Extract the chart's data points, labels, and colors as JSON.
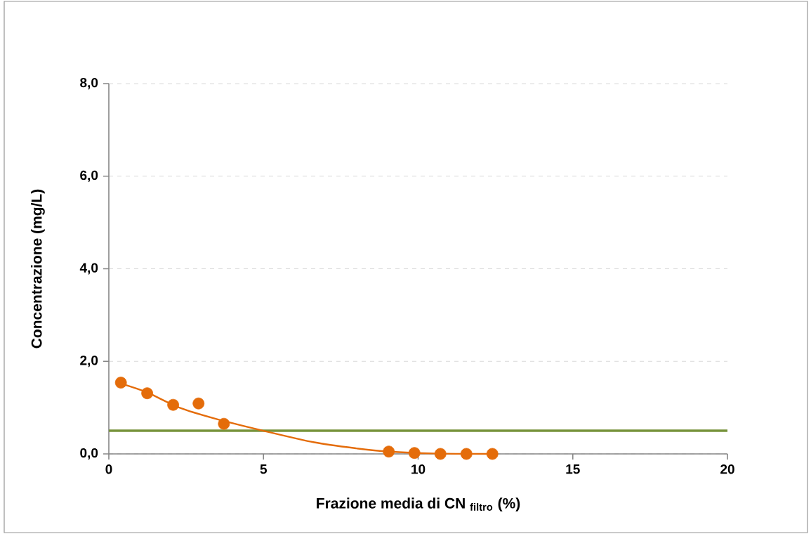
{
  "chart_data": {
    "type": "scatter",
    "xlabel": "Frazione media di CN $_{filtro}$ (%)",
    "ylabel": "Concentrazione  (mg/L)",
    "series": [
      {
        "color": "#e46c0a",
        "marker": "circle",
        "x": [
          0.39,
          1.24,
          2.08,
          2.9,
          3.72,
          9.05,
          9.88,
          10.72,
          11.56,
          12.4
        ],
        "values": [
          1.54,
          1.31,
          1.06,
          1.09,
          0.65,
          0.05,
          0.02,
          0.0,
          0.0,
          0.0
        ]
      },
      {
        "type": "line",
        "color": "#e46c0a",
        "marker": "none",
        "x": [
          0.39,
          1.23,
          2.28,
          3.5,
          5.0,
          6.64,
          8.0,
          9.05,
          10.5,
          12.4
        ],
        "values": [
          1.52,
          1.33,
          1.0,
          0.75,
          0.5,
          0.25,
          0.12,
          0.05,
          0.01,
          0.0
        ]
      }
    ],
    "ref_lines": [
      {
        "axis": "y",
        "value": 0.5,
        "color": "#77933c"
      }
    ],
    "xlim": [
      0,
      20
    ],
    "ylim": [
      0,
      8
    ],
    "xticks": [
      0,
      5,
      10,
      15,
      20
    ],
    "yticks": [
      {
        "value": 0,
        "label": "0,0"
      },
      {
        "value": 2,
        "label": "2,0"
      },
      {
        "value": 4,
        "label": "4,0"
      },
      {
        "value": 6,
        "label": "6,0"
      },
      {
        "value": 8,
        "label": "8,0"
      }
    ],
    "grid": "y"
  }
}
